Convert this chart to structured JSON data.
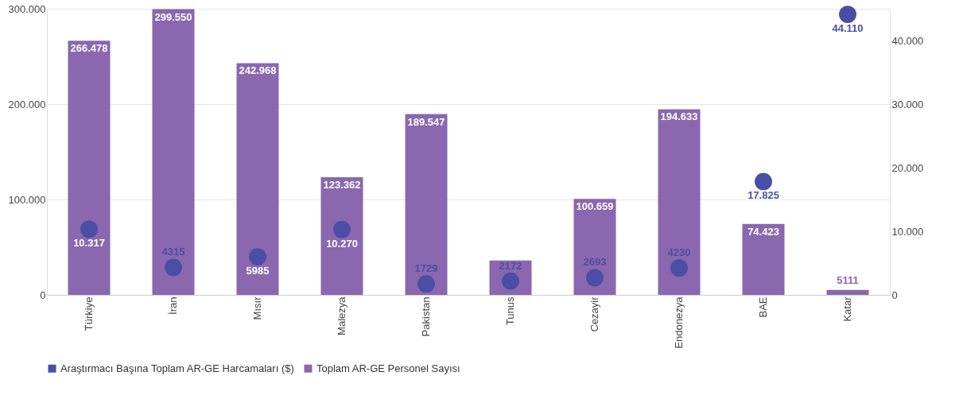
{
  "chart_data": {
    "type": "bar",
    "categories": [
      "Türkiye",
      "İran",
      "Mısır",
      "Malezya",
      "Pakistan",
      "Tunus",
      "Cezayir",
      "Endonezya",
      "BAE",
      "Katar"
    ],
    "series": [
      {
        "name": "Araştırmacı Başına Toplam AR-GE Harcamaları ($)",
        "type": "scatter",
        "axis": "y2",
        "color": "#4a4ea5",
        "values": [
          10317,
          4315,
          5985,
          10270,
          1729,
          2172,
          2693,
          4230,
          17825,
          44110
        ],
        "value_labels": [
          "10.317",
          "4315",
          "5985",
          "10.270",
          "1729",
          "2172",
          "2693",
          "4230",
          "17.825",
          "44.110"
        ]
      },
      {
        "name": "Toplam AR-GE Personel Sayısı",
        "color": "#8a67ae",
        "values": [
          266478,
          299550,
          242968,
          123362,
          189547,
          36000,
          100659,
          194633,
          74423,
          5111
        ],
        "value_labels": [
          "266.478",
          "299.550",
          "242.968",
          "123.362",
          "189.547",
          null,
          "100.659",
          "194.633",
          "74.423",
          "5111"
        ]
      }
    ],
    "ylim": [
      0,
      300000
    ],
    "yticks": [
      0,
      {
        "value": 100000,
        "label": "100.000"
      },
      {
        "value": 200000,
        "label": "200.000"
      },
      {
        "value": 300000,
        "label": "300.000"
      }
    ],
    "y2lim": [
      0,
      45000
    ],
    "y2ticks": [
      0,
      {
        "value": 10000,
        "label": "10.000"
      },
      {
        "value": 20000,
        "label": "20.000"
      },
      {
        "value": 30000,
        "label": "30.000"
      },
      {
        "value": 40000,
        "label": "40.000"
      }
    ],
    "grid": "y",
    "legend": "bottom",
    "marker": "circle"
  }
}
